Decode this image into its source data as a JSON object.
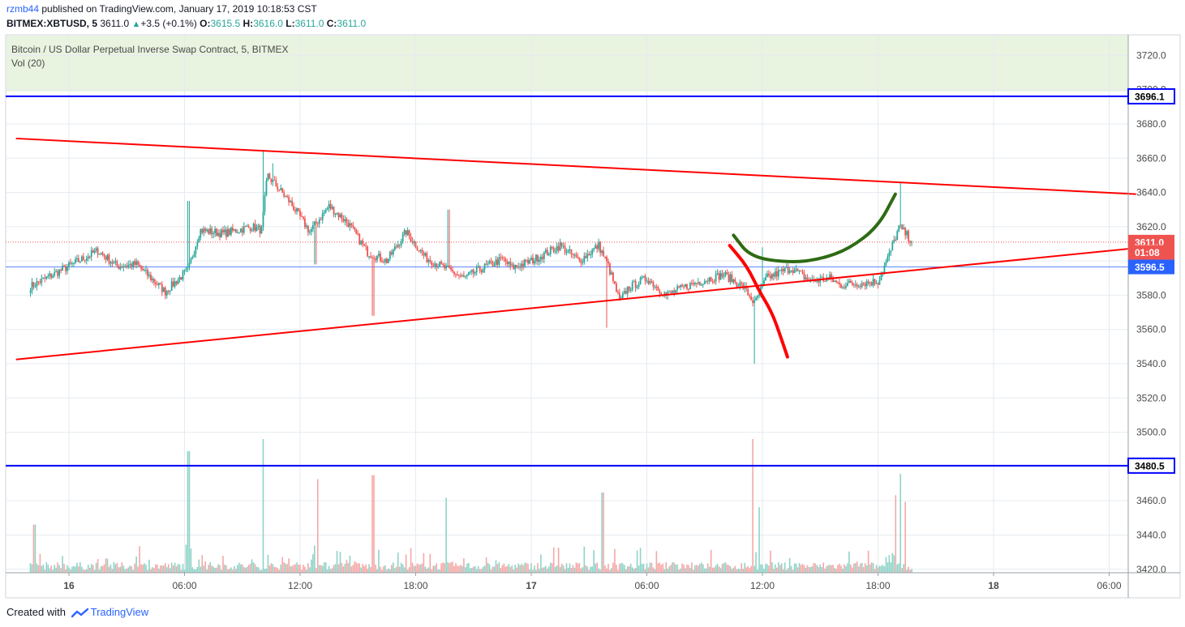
{
  "publish_line": {
    "user": "rzmb44",
    "text": "published on TradingView.com, January 17, 2019 10:18:53 CST"
  },
  "ohlc_line": {
    "symbol": "BITMEX:XBTUSD, 5",
    "last": "3611.0",
    "change": "+3.5 (+0.1%)",
    "o_label": "O:",
    "o": "3615.5",
    "h_label": "H:",
    "h": "3616.0",
    "l_label": "L:",
    "l": "3611.0",
    "c_label": "C:",
    "c": "3611.0"
  },
  "legend": {
    "title": "Bitcoin / US Dollar Perpetual Inverse Swap Contract, 5, BITMEX",
    "indicator": "Vol (20)"
  },
  "footer": {
    "created_with": "Created with",
    "brand": "TradingView"
  },
  "colors": {
    "up": "#26a69a",
    "down": "#ef5350",
    "horizontal_level": "#0000ff",
    "trendline": "#ff0000",
    "green_projection": "#2e6b14",
    "red_projection": "#ff0000",
    "top_zone": "#e8f3e0",
    "grid": "#e6ebf0",
    "current_price_tag": "#ef5350",
    "mid_level_tag": "#2962ff"
  },
  "chart_data": {
    "type": "candlestick",
    "symbol": "BITMEX:XBTUSD",
    "interval": "5",
    "x_tick_labels": [
      "16",
      "06:00",
      "12:00",
      "18:00",
      "17",
      "06:00",
      "12:00",
      "18:00",
      "18",
      "06:00"
    ],
    "y_tick_labels": [
      "3420.0",
      "3440.0",
      "3460.0",
      "3480.0",
      "3500.0",
      "3520.0",
      "3540.0",
      "3560.0",
      "3580.0",
      "3600.0",
      "3620.0",
      "3640.0",
      "3660.0",
      "3680.0",
      "3700.0",
      "3720.0"
    ],
    "y_range": [
      3418,
      3732
    ],
    "price_tags": [
      {
        "label": "3696.1",
        "value": 3696.1,
        "style": "blue-level"
      },
      {
        "label": "3611.0",
        "value": 3611.0,
        "style": "current"
      },
      {
        "label": "01:08",
        "value": 3605.0,
        "style": "countdown"
      },
      {
        "label": "3596.5",
        "value": 3596.5,
        "style": "mid-level"
      },
      {
        "label": "3480.5",
        "value": 3480.5,
        "style": "blue-level"
      }
    ],
    "horizontal_levels": [
      3696.1,
      3480.5
    ],
    "mid_level_line": 3596.5,
    "current_price_line": 3611.0,
    "top_zone": [
      3699,
      3740
    ],
    "trendlines": [
      {
        "name": "upper",
        "from_hour": -2.75,
        "from_price": 3671.5,
        "to_hour": 55.4,
        "to_price": 3639.0
      },
      {
        "name": "lower",
        "from_hour": -2.75,
        "from_price": 3542.5,
        "to_hour": 55.4,
        "to_price": 3607.5
      }
    ],
    "projection_paths": [
      {
        "name": "bullish",
        "points": [
          [
            34.5,
            3615
          ],
          [
            35.4,
            3602
          ],
          [
            37.5,
            3599
          ],
          [
            39.0,
            3601
          ],
          [
            40.5,
            3607
          ],
          [
            42.0,
            3620
          ],
          [
            42.9,
            3639
          ]
        ]
      },
      {
        "name": "bearish",
        "points": [
          [
            34.3,
            3609
          ],
          [
            35.2,
            3597
          ],
          [
            35.8,
            3583
          ],
          [
            36.5,
            3570
          ],
          [
            37.0,
            3554
          ],
          [
            37.3,
            3544
          ]
        ]
      }
    ],
    "anchors": [
      [
        -2.0,
        3585
      ],
      [
        0,
        3597
      ],
      [
        1.5,
        3606
      ],
      [
        2.5,
        3597
      ],
      [
        3.5,
        3598
      ],
      [
        5.0,
        3582
      ],
      [
        6.2,
        3595
      ],
      [
        6.8,
        3618
      ],
      [
        8.0,
        3616
      ],
      [
        9.5,
        3620
      ],
      [
        10.0,
        3618
      ],
      [
        10.3,
        3650
      ],
      [
        11.5,
        3634
      ],
      [
        12.5,
        3617
      ],
      [
        13.5,
        3632
      ],
      [
        14.5,
        3622
      ],
      [
        15.5,
        3605
      ],
      [
        16.5,
        3600
      ],
      [
        17.5,
        3617
      ],
      [
        18.5,
        3602
      ],
      [
        19.5,
        3596
      ],
      [
        20.5,
        3590
      ],
      [
        21.5,
        3596
      ],
      [
        22.5,
        3601
      ],
      [
        23.0,
        3596
      ],
      [
        24.0,
        3600
      ],
      [
        25.5,
        3609
      ],
      [
        26.5,
        3600
      ],
      [
        27.5,
        3609
      ],
      [
        28.0,
        3597
      ],
      [
        28.6,
        3576
      ],
      [
        29.0,
        3584
      ],
      [
        30.0,
        3590
      ],
      [
        31.0,
        3580
      ],
      [
        32.0,
        3585
      ],
      [
        33.0,
        3589
      ],
      [
        34.0,
        3592
      ],
      [
        35.0,
        3585
      ],
      [
        35.6,
        3575
      ],
      [
        36.2,
        3590
      ],
      [
        37.5,
        3596
      ],
      [
        38.5,
        3588
      ],
      [
        39.5,
        3590
      ],
      [
        40.0,
        3586
      ],
      [
        41.0,
        3587
      ],
      [
        42.0,
        3588
      ],
      [
        42.6,
        3604
      ],
      [
        43.1,
        3620
      ],
      [
        43.5,
        3615
      ],
      [
        43.8,
        3611
      ]
    ],
    "spikes": [
      {
        "hour": 6.2,
        "high": 3635
      },
      {
        "hour": 10.1,
        "high": 3664
      },
      {
        "hour": 10.6,
        "high": 3657
      },
      {
        "hour": 12.8,
        "low": 3598
      },
      {
        "hour": 15.8,
        "low": 3568
      },
      {
        "hour": 19.7,
        "high": 3630
      },
      {
        "hour": 27.9,
        "low": 3561
      },
      {
        "hour": 35.6,
        "low": 3540
      },
      {
        "hour": 36.0,
        "high": 3608
      },
      {
        "hour": 43.2,
        "high": 3646
      }
    ],
    "volume_spikes": [
      {
        "hour": 6.2,
        "fraction": 0.91
      },
      {
        "hour": 10.1,
        "fraction": 1.0
      },
      {
        "hour": 12.9,
        "fraction": 0.7
      },
      {
        "hour": 15.8,
        "fraction": 0.73
      },
      {
        "hour": 19.6,
        "fraction": 0.56
      },
      {
        "hour": 27.7,
        "fraction": 0.6
      },
      {
        "hour": 35.5,
        "fraction": 1.0
      },
      {
        "hour": 35.8,
        "fraction": 0.49
      },
      {
        "hour": 42.9,
        "fraction": 0.58
      },
      {
        "hour": 43.2,
        "fraction": 0.74
      },
      {
        "hour": 43.4,
        "fraction": 0.53
      },
      {
        "hour": -1.8,
        "fraction": 0.36
      }
    ]
  }
}
